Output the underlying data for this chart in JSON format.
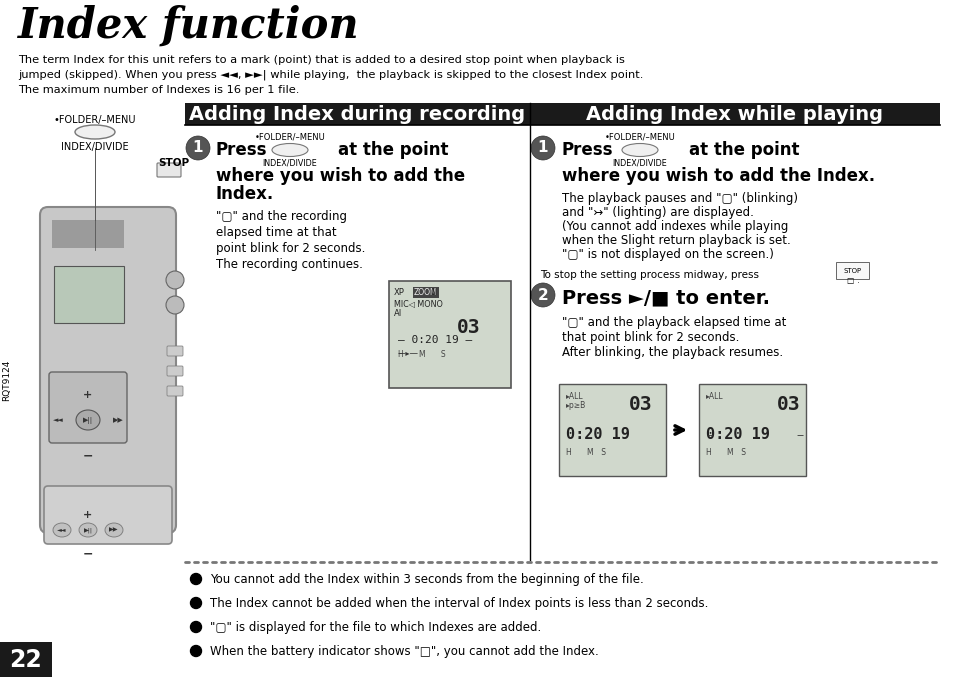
{
  "bg_color": "#ffffff",
  "title": "Index function",
  "title_fontsize": 30,
  "intro_lines": [
    "The term Index for this unit refers to a mark (point) that is added to a desired stop point when playback is",
    "jumped (skipped). When you press ◄◄, ►►| while playing,  the playback is skipped to the closest Index point.",
    "The maximum number of Indexes is 16 per 1 file."
  ],
  "section1_title": "Adding Index during recording",
  "section2_title": "Adding Index while playing",
  "section_title_fontsize": 14,
  "section_bg_color": "#1a1a1a",
  "section_text_color": "#ffffff",
  "left_label1": "•FOLDER/–MENU",
  "left_label2": "INDEX/DIVIDE",
  "left_label3": "STOP",
  "s1_step1_bold": "Press            at the point",
  "s1_step1_bold2": "where you wish to add the",
  "s1_step1_bold3": "Index.",
  "s1_body": [
    "\"▢\" and the recording",
    "elapsed time at that",
    "point blink for 2 seconds.",
    "The recording continues."
  ],
  "s2_step1_bold": "Press            at the point",
  "s2_step1_bold2": "where you wish to add the Index.",
  "s2_body1": [
    "The playback pauses and \"▢\" (blinking)",
    "and \"↣\" (lighting) are displayed.",
    "(You cannot add indexes while playing",
    "when the Slight return playback is set.",
    "\"▢\" is not displayed on the screen.)"
  ],
  "s2_stop_line": "To stop the setting process midway, press",
  "s2_step2_bold": "Press ►/■ to enter.",
  "s2_body2": [
    "\"▢\" and the playback elapsed time at",
    "that point blink for 2 seconds.",
    "After blinking, the playback resumes."
  ],
  "bullet_points": [
    "You cannot add the Index within 3 seconds from the beginning of the file.",
    "The Index cannot be added when the interval of Index points is less than 2 seconds.",
    "\"▢\" is displayed for the file to which Indexes are added.",
    "When the battery indicator shows \"□\", you cannot add the Index."
  ],
  "page_number": "22",
  "page_num_bg": "#1a1a1a",
  "page_num_color": "#ffffff",
  "sidebar_text": "RQT9124",
  "lcd_bg": "#d0d8cc",
  "lcd_border": "#555555"
}
